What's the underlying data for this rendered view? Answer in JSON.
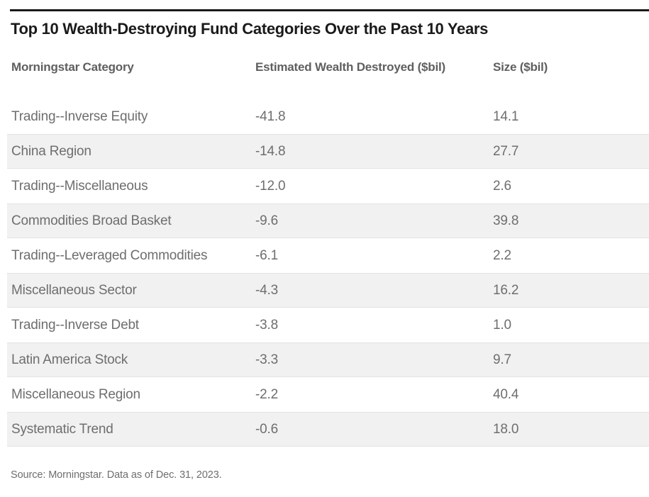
{
  "title": "Top 10 Wealth-Destroying Fund Categories Over the Past 10 Years",
  "table": {
    "columns": [
      "Morningstar Category",
      "Estimated Wealth Destroyed ($bil)",
      "Size ($bil)"
    ],
    "rows": [
      {
        "category": "Trading--Inverse Equity",
        "wealth_destroyed": "-41.8",
        "size": "14.1"
      },
      {
        "category": "China Region",
        "wealth_destroyed": "-14.8",
        "size": "27.7"
      },
      {
        "category": "Trading--Miscellaneous",
        "wealth_destroyed": "-12.0",
        "size": "2.6"
      },
      {
        "category": "Commodities Broad Basket",
        "wealth_destroyed": "-9.6",
        "size": "39.8"
      },
      {
        "category": "Trading--Leveraged Commodities",
        "wealth_destroyed": "-6.1",
        "size": "2.2"
      },
      {
        "category": "Miscellaneous Sector",
        "wealth_destroyed": "-4.3",
        "size": "16.2"
      },
      {
        "category": "Trading--Inverse Debt",
        "wealth_destroyed": "-3.8",
        "size": "1.0"
      },
      {
        "category": "Latin America Stock",
        "wealth_destroyed": "-3.3",
        "size": "9.7"
      },
      {
        "category": "Miscellaneous Region",
        "wealth_destroyed": "-2.2",
        "size": "40.4"
      },
      {
        "category": "Systematic Trend",
        "wealth_destroyed": "-0.6",
        "size": "18.0"
      }
    ]
  },
  "footer": {
    "source": "Source: Morningstar. Data as of Dec. 31, 2023."
  },
  "colors": {
    "title_text": "#1a1a1a",
    "top_rule": "#1a1a1a",
    "header_text": "#5f5f5f",
    "body_text": "#6e6e6e",
    "stripe_background": "#f1f1f1",
    "stripe_border": "#e3e3e3",
    "page_background": "#ffffff"
  },
  "chart_data": {
    "type": "table",
    "title": "Top 10 Wealth-Destroying Fund Categories Over the Past 10 Years",
    "columns": [
      "Morningstar Category",
      "Estimated Wealth Destroyed ($bil)",
      "Size ($bil)"
    ],
    "rows": [
      [
        "Trading--Inverse Equity",
        -41.8,
        14.1
      ],
      [
        "China Region",
        -14.8,
        27.7
      ],
      [
        "Trading--Miscellaneous",
        -12.0,
        2.6
      ],
      [
        "Commodities Broad Basket",
        -9.6,
        39.8
      ],
      [
        "Trading--Leveraged Commodities",
        -6.1,
        2.2
      ],
      [
        "Miscellaneous Sector",
        -4.3,
        16.2
      ],
      [
        "Trading--Inverse Debt",
        -3.8,
        1.0
      ],
      [
        "Latin America Stock",
        -3.3,
        9.7
      ],
      [
        "Miscellaneous Region",
        -2.2,
        40.4
      ],
      [
        "Systematic Trend",
        -0.6,
        18.0
      ]
    ],
    "layout_hints": {
      "zebra_striping": "even data rows shaded light gray",
      "value_columns_left_aligned": true,
      "source": "Source: Morningstar. Data as of Dec. 31, 2023."
    }
  }
}
